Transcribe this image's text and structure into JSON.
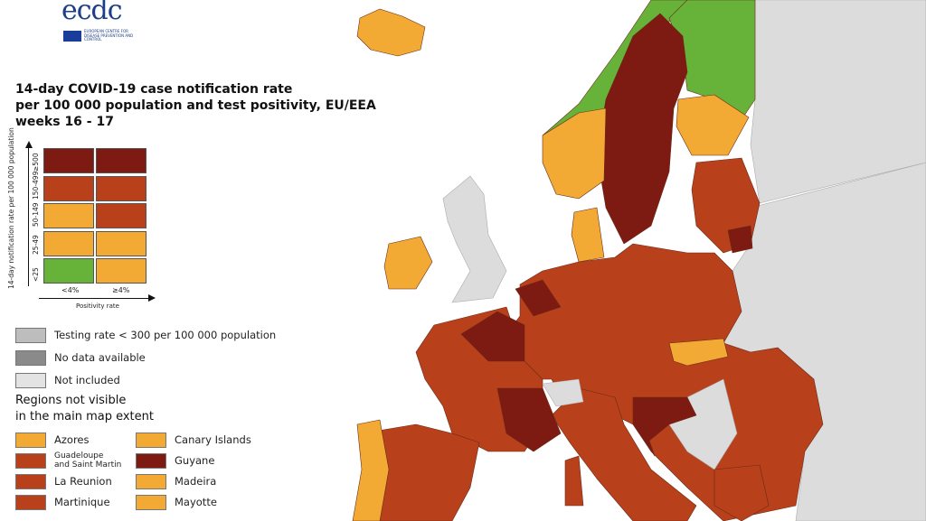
{
  "logo": {
    "text": "ecdc",
    "subtitle": "EUROPEAN CENTRE FOR DISEASE PREVENTION AND CONTROL"
  },
  "title": "14-day COVID-19 case notification rate\nper 100 000 population and test positivity, EU/EEA\nweeks 16 - 17",
  "matrix": {
    "y_axis_title": "14-day notification rate per 100 000 population",
    "x_axis_title": "Positivity rate",
    "rate_bands": [
      "≥500",
      "150-499",
      "50-149",
      "25-49",
      "<25"
    ],
    "positivity_bands": [
      "<4%",
      "≥4%"
    ],
    "colors": [
      [
        "#7d1a12",
        "#7d1a12"
      ],
      [
        "#b8401b",
        "#b8401b"
      ],
      [
        "#f2aa35",
        "#b8401b"
      ],
      [
        "#f2aa35",
        "#f2aa35"
      ],
      [
        "#67b33a",
        "#f2aa35"
      ]
    ]
  },
  "legend": [
    {
      "label": "Testing rate < 300 per 100 000 population",
      "color": "#bdbdbd"
    },
    {
      "label": "No data available",
      "color": "#8a8a8a"
    },
    {
      "label": "Not included",
      "color": "#e3e3e3"
    }
  ],
  "regions_title": "Regions not visible\nin the main map extent",
  "regions": [
    {
      "label": "Azores",
      "color": "#f2aa35"
    },
    {
      "label": "Guadeloupe\nand Saint Martin",
      "color": "#b8401b"
    },
    {
      "label": "La Reunion",
      "color": "#b8401b"
    },
    {
      "label": "Martinique",
      "color": "#b8401b"
    },
    {
      "label": "Canary Islands",
      "color": "#f2aa35"
    },
    {
      "label": "Guyane",
      "color": "#7d1a12"
    },
    {
      "label": "Madeira",
      "color": "#f2aa35"
    },
    {
      "label": "Mayotte",
      "color": "#f2aa35"
    }
  ],
  "colors": {
    "dark_red": "#7d1a12",
    "red": "#b8401b",
    "orange": "#f2aa35",
    "green": "#67b33a",
    "not_included": "#dcdcdc",
    "sea": "#ffffff"
  }
}
